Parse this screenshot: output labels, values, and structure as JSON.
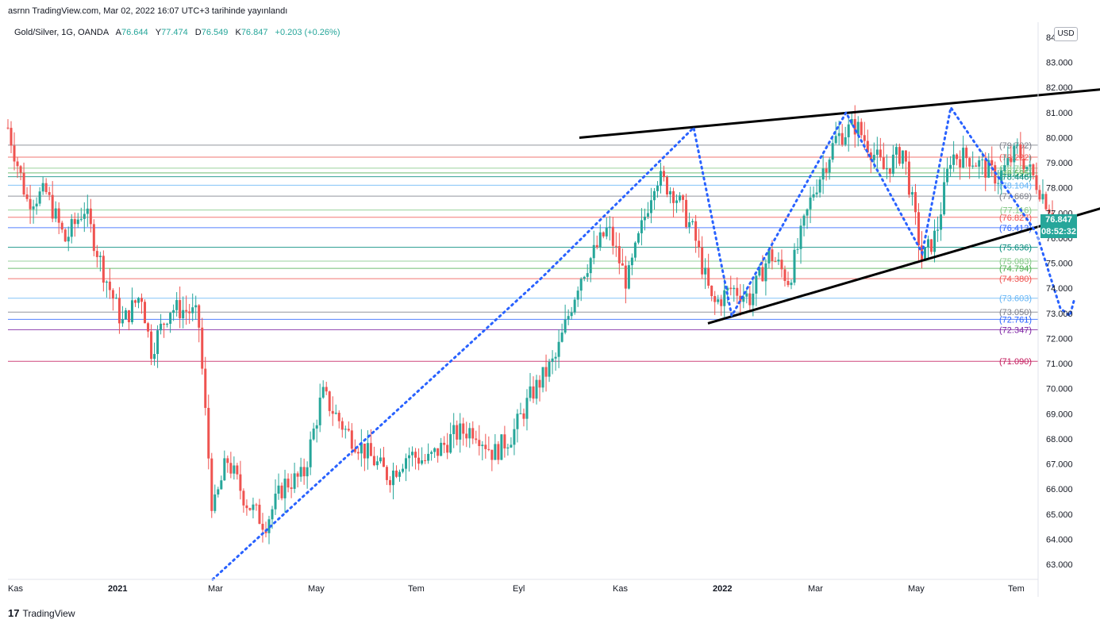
{
  "header": {
    "published_text": "asrnn TradingView.com, Mar 02, 2022 16:07 UTC+3 tarihinde yayınlandı"
  },
  "legend": {
    "symbol": "Gold/Silver, 1G, OANDA",
    "open_label": "A",
    "open": "76.644",
    "high_label": "Y",
    "high": "77.474",
    "low_label": "D",
    "low": "76.549",
    "close_label": "K",
    "close": "76.847",
    "change": "+0.203 (+0.26%)"
  },
  "currency_button": "USD",
  "last_price": {
    "value": "76.847",
    "countdown": "08:52:32"
  },
  "footer": {
    "brand": "TradingView",
    "logo_glyph": "17"
  },
  "colors": {
    "up": "#26a69a",
    "down": "#ef5350",
    "trendline": "#000000",
    "path": "#2962ff",
    "grid_text": "#131722",
    "axis_border": "#e0e3eb"
  },
  "chart_data": {
    "type": "candlestick",
    "ylim": [
      62.4,
      84.6
    ],
    "y_ticks": [
      84.0,
      83.0,
      82.0,
      81.0,
      80.0,
      79.0,
      78.0,
      77.0,
      76.0,
      75.0,
      74.0,
      73.0,
      72.0,
      71.0,
      70.0,
      69.0,
      68.0,
      67.0,
      66.0,
      65.0,
      64.0,
      63.0
    ],
    "x_ticks": [
      "Kas",
      "2021",
      "Mar",
      "May",
      "Tem",
      "Eyl",
      "Kas",
      "2022",
      "Mar",
      "May",
      "Tem"
    ],
    "horizontal_levels": [
      {
        "value": 79.702,
        "label": "(79.702)",
        "color": "#787b86"
      },
      {
        "value": 79.222,
        "label": "(79.222)",
        "color": "#ef5350"
      },
      {
        "value": 78.785,
        "label": "(78.785)",
        "color": "#81c784"
      },
      {
        "value": 78.595,
        "label": "(78.595)",
        "color": "#4caf50"
      },
      {
        "value": 78.446,
        "label": "(78.446)",
        "color": "#00897b"
      },
      {
        "value": 78.104,
        "label": "(78.104)",
        "color": "#64b5f6"
      },
      {
        "value": 77.669,
        "label": "(77.669)",
        "color": "#787b86"
      },
      {
        "value": 77.116,
        "label": "(77.116)",
        "color": "#81c784"
      },
      {
        "value": 76.827,
        "label": "(76.827)",
        "color": "#ef5350"
      },
      {
        "value": 76.413,
        "label": "(76.413)",
        "color": "#2962ff"
      },
      {
        "value": 75.636,
        "label": "(75.636)",
        "color": "#00897b"
      },
      {
        "value": 75.083,
        "label": "(75.083)",
        "color": "#81c784"
      },
      {
        "value": 74.794,
        "label": "(74.794)",
        "color": "#4caf50"
      },
      {
        "value": 74.38,
        "label": "(74.380)",
        "color": "#ef5350"
      },
      {
        "value": 73.603,
        "label": "(73.603)",
        "color": "#64b5f6"
      },
      {
        "value": 73.05,
        "label": "(73.050)",
        "color": "#787b86"
      },
      {
        "value": 72.761,
        "label": "(72.761)",
        "color": "#2962ff"
      },
      {
        "value": 72.347,
        "label": "(72.347)",
        "color": "#7b1fa2"
      },
      {
        "value": 71.09,
        "label": "(71.090)",
        "color": "#c2185b"
      }
    ],
    "price_anchors": [
      [
        0,
        80.4
      ],
      [
        0.02,
        77.5
      ],
      [
        0.04,
        77.8
      ],
      [
        0.06,
        75.9
      ],
      [
        0.08,
        77.2
      ],
      [
        0.1,
        74.7
      ],
      [
        0.12,
        72.6
      ],
      [
        0.14,
        73.8
      ],
      [
        0.15,
        71.5
      ],
      [
        0.17,
        73.2
      ],
      [
        0.19,
        73.1
      ],
      [
        0.2,
        72.8
      ],
      [
        0.215,
        65.0
      ],
      [
        0.23,
        67.2
      ],
      [
        0.25,
        65.5
      ],
      [
        0.27,
        64.6
      ],
      [
        0.29,
        66.2
      ],
      [
        0.31,
        66.5
      ],
      [
        0.33,
        69.8
      ],
      [
        0.355,
        68.3
      ],
      [
        0.38,
        67.3
      ],
      [
        0.4,
        66.5
      ],
      [
        0.42,
        67.4
      ],
      [
        0.44,
        67.1
      ],
      [
        0.47,
        68.2
      ],
      [
        0.49,
        68.4
      ],
      [
        0.51,
        67.4
      ],
      [
        0.53,
        68.2
      ],
      [
        0.55,
        69.8
      ],
      [
        0.575,
        71.2
      ],
      [
        0.6,
        74.4
      ],
      [
        0.63,
        76.4
      ],
      [
        0.65,
        74.2
      ],
      [
        0.68,
        78.5
      ],
      [
        0.7,
        77.8
      ],
      [
        0.72,
        76.2
      ],
      [
        0.74,
        73.3
      ],
      [
        0.76,
        74.0
      ],
      [
        0.78,
        73.6
      ],
      [
        0.8,
        75.4
      ],
      [
        0.82,
        74.3
      ],
      [
        0.845,
        77.8
      ],
      [
        0.87,
        80.0
      ],
      [
        0.89,
        80.5
      ],
      [
        0.92,
        78.7
      ],
      [
        0.94,
        79.5
      ],
      [
        0.96,
        75.1
      ],
      [
        0.975,
        76.2
      ],
      [
        0.99,
        79.3
      ],
      [
        1.01,
        79.2
      ],
      [
        1.04,
        78.4
      ],
      [
        1.06,
        79.5
      ],
      [
        1.08,
        78.2
      ],
      [
        1.1,
        76.8
      ]
    ],
    "trendlines": [
      {
        "from": [
          0.6,
          80.0
        ],
        "to": [
          0.97,
          81.3
        ],
        "extend_to": 1.18
      },
      {
        "from": [
          0.735,
          72.6
        ],
        "to": [
          0.96,
          75.1
        ],
        "extend_to": 1.2
      }
    ],
    "projection_path": [
      [
        0.215,
        62.4
      ],
      [
        0.56,
        74.4
      ],
      [
        0.72,
        80.4
      ],
      [
        0.76,
        72.9
      ],
      [
        0.88,
        81.0
      ],
      [
        0.96,
        75.4
      ],
      [
        0.99,
        81.2
      ],
      [
        1.08,
        76.2
      ],
      [
        1.105,
        73.2
      ],
      [
        1.115,
        72.9
      ],
      [
        1.12,
        73.6
      ]
    ]
  }
}
